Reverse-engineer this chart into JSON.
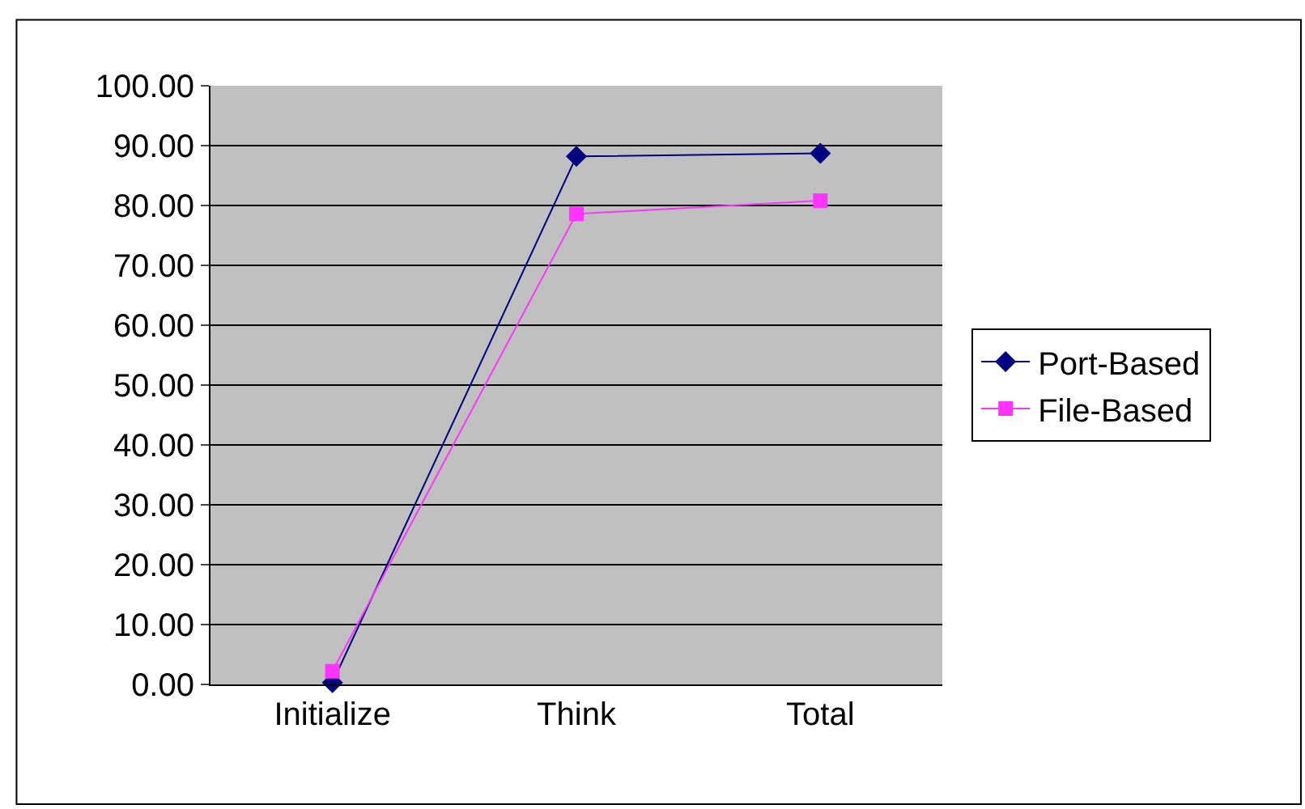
{
  "chart_data": {
    "type": "line",
    "categories": [
      "Initialize",
      "Think",
      "Total"
    ],
    "series": [
      {
        "name": "Port-Based",
        "color": "#000080",
        "values": [
          0.3,
          88.2,
          88.7
        ],
        "marker": "diamond"
      },
      {
        "name": "File-Based",
        "color": "#ff33ff",
        "values": [
          2.2,
          78.6,
          80.8
        ],
        "marker": "square"
      }
    ],
    "ylim": [
      0,
      100
    ],
    "yticks": [
      {
        "value": 0,
        "label": "0.00"
      },
      {
        "value": 10,
        "label": "10.00"
      },
      {
        "value": 20,
        "label": "20.00"
      },
      {
        "value": 30,
        "label": "30.00"
      },
      {
        "value": 40,
        "label": "40.00"
      },
      {
        "value": 50,
        "label": "50.00"
      },
      {
        "value": 60,
        "label": "60.00"
      },
      {
        "value": 70,
        "label": "70.00"
      },
      {
        "value": 80,
        "label": "80.00"
      },
      {
        "value": 90,
        "label": "90.00"
      },
      {
        "value": 100,
        "label": "100.00"
      }
    ],
    "grid": "y",
    "legend": "right",
    "line_style": "solid"
  }
}
